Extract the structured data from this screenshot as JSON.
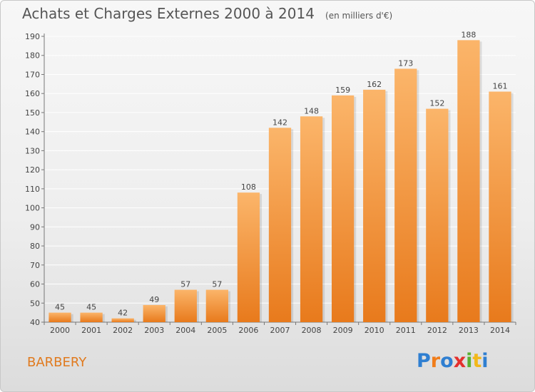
{
  "header": {
    "title": "Achats et Charges Externes 2000 à 2014",
    "unit": "(en milliers d'€)"
  },
  "footer": {
    "commune": "BARBERY",
    "logo_text": "Proxiti",
    "logo_colors": [
      "#2f7fd1",
      "#f07d1a",
      "#2f7fd1",
      "#e4302d",
      "#5ab031",
      "#f2b81a",
      "#2f7fd1"
    ]
  },
  "colors": {
    "bar_light": "#fbb56a",
    "bar_dark": "#e87a1c",
    "grid": "#ffffff",
    "commune": "#e07a1e"
  },
  "chart_data": {
    "type": "bar",
    "title": "Achats et Charges Externes 2000 à 2014",
    "subtitle": "(en milliers d'€)",
    "xlabel": "",
    "ylabel": "",
    "categories": [
      "2000",
      "2001",
      "2002",
      "2003",
      "2004",
      "2005",
      "2006",
      "2007",
      "2008",
      "2009",
      "2010",
      "2011",
      "2012",
      "2013",
      "2014"
    ],
    "values": [
      45,
      45,
      42,
      49,
      57,
      57,
      108,
      142,
      148,
      159,
      162,
      173,
      152,
      188,
      161
    ],
    "ylim": [
      40,
      190
    ],
    "yticks": [
      40,
      50,
      60,
      70,
      80,
      90,
      100,
      110,
      120,
      130,
      140,
      150,
      160,
      170,
      180,
      190
    ],
    "grid": true,
    "legend": "none"
  }
}
